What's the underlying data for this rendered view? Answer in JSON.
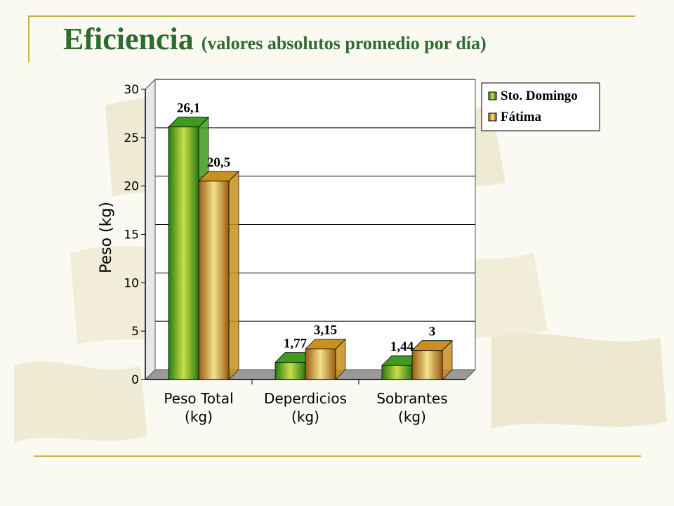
{
  "slide": {
    "title_main": "Eficiencia",
    "title_sub": "(valores absolutos promedio por día)",
    "accent_color": "#2d6b2f",
    "line_color": "#c9b24a"
  },
  "chart_data": {
    "type": "bar",
    "style": "3d-clustered",
    "categories": [
      "Peso Total (kg)",
      "Deperdicios (kg)",
      "Sobrantes (kg)"
    ],
    "series": [
      {
        "name": "Sto. Domingo",
        "values": [
          26.1,
          1.77,
          1.44
        ],
        "labels": [
          "26,1",
          "1,77",
          "1,44"
        ],
        "color": "#3f9a1f"
      },
      {
        "name": "Fátima",
        "values": [
          20.5,
          3.15,
          3
        ],
        "labels": [
          "20,5",
          "3,15",
          "3"
        ],
        "color": "#c8901e"
      }
    ],
    "ylabel": "Peso (kg)",
    "xlabel": "",
    "ylim": [
      0,
      30
    ],
    "yticks": [
      0,
      5,
      10,
      15,
      20,
      25,
      30
    ],
    "grid": true,
    "legend_position": "top-right"
  }
}
